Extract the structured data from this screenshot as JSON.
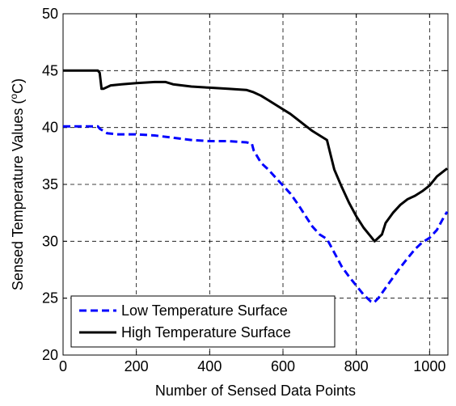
{
  "chart_data": {
    "type": "line",
    "xlabel": "Number of Sensed Data Points",
    "ylabel": "Sensed Temperature Values (",
    "ylabel_sup": "o",
    "ylabel_unit": "C)",
    "xlim": [
      0,
      1050
    ],
    "ylim": [
      20,
      50
    ],
    "xticks": [
      0,
      200,
      400,
      600,
      800,
      1000
    ],
    "yticks": [
      20,
      25,
      30,
      35,
      40,
      45,
      50
    ],
    "grid": true,
    "grid_style": "dashed",
    "legend_position": "bottom-left",
    "series": [
      {
        "name": "Low Temperature Surface",
        "color": "#0000ff",
        "line_style": "dashed",
        "points": [
          [
            0,
            40.1
          ],
          [
            30,
            40.1
          ],
          [
            60,
            40.1
          ],
          [
            95,
            40.1
          ],
          [
            100,
            39.9
          ],
          [
            120,
            39.5
          ],
          [
            150,
            39.4
          ],
          [
            200,
            39.4
          ],
          [
            250,
            39.3
          ],
          [
            300,
            39.1
          ],
          [
            350,
            38.9
          ],
          [
            400,
            38.8
          ],
          [
            450,
            38.8
          ],
          [
            500,
            38.7
          ],
          [
            515,
            38.6
          ],
          [
            520,
            38.0
          ],
          [
            540,
            36.9
          ],
          [
            560,
            36.3
          ],
          [
            580,
            35.6
          ],
          [
            600,
            34.9
          ],
          [
            620,
            34.2
          ],
          [
            640,
            33.3
          ],
          [
            660,
            32.3
          ],
          [
            680,
            31.3
          ],
          [
            700,
            30.6
          ],
          [
            720,
            30.2
          ],
          [
            740,
            29.0
          ],
          [
            760,
            27.8
          ],
          [
            780,
            26.9
          ],
          [
            800,
            26.1
          ],
          [
            820,
            25.3
          ],
          [
            840,
            24.7
          ],
          [
            848,
            24.6
          ],
          [
            860,
            25.0
          ],
          [
            880,
            25.9
          ],
          [
            900,
            26.8
          ],
          [
            920,
            27.7
          ],
          [
            940,
            28.5
          ],
          [
            960,
            29.3
          ],
          [
            980,
            29.9
          ],
          [
            1000,
            30.3
          ],
          [
            1020,
            31.0
          ],
          [
            1040,
            32.2
          ],
          [
            1048,
            32.6
          ]
        ]
      },
      {
        "name": "High Temperature Surface",
        "color": "#000000",
        "line_style": "solid",
        "points": [
          [
            0,
            45.0
          ],
          [
            50,
            45.0
          ],
          [
            95,
            45.0
          ],
          [
            100,
            44.8
          ],
          [
            105,
            43.4
          ],
          [
            110,
            43.4
          ],
          [
            130,
            43.7
          ],
          [
            160,
            43.8
          ],
          [
            200,
            43.9
          ],
          [
            250,
            44.0
          ],
          [
            280,
            44.0
          ],
          [
            300,
            43.8
          ],
          [
            350,
            43.6
          ],
          [
            400,
            43.5
          ],
          [
            450,
            43.4
          ],
          [
            500,
            43.3
          ],
          [
            520,
            43.1
          ],
          [
            540,
            42.8
          ],
          [
            560,
            42.4
          ],
          [
            580,
            42.0
          ],
          [
            600,
            41.6
          ],
          [
            620,
            41.2
          ],
          [
            640,
            40.7
          ],
          [
            660,
            40.2
          ],
          [
            680,
            39.7
          ],
          [
            700,
            39.3
          ],
          [
            720,
            38.9
          ],
          [
            730,
            37.6
          ],
          [
            740,
            36.3
          ],
          [
            760,
            34.8
          ],
          [
            780,
            33.4
          ],
          [
            800,
            32.2
          ],
          [
            820,
            31.2
          ],
          [
            840,
            30.4
          ],
          [
            850,
            30.0
          ],
          [
            860,
            30.3
          ],
          [
            870,
            30.6
          ],
          [
            880,
            31.6
          ],
          [
            900,
            32.5
          ],
          [
            920,
            33.2
          ],
          [
            940,
            33.7
          ],
          [
            960,
            34.0
          ],
          [
            980,
            34.4
          ],
          [
            1000,
            34.9
          ],
          [
            1020,
            35.7
          ],
          [
            1040,
            36.2
          ],
          [
            1048,
            36.4
          ]
        ]
      }
    ]
  }
}
